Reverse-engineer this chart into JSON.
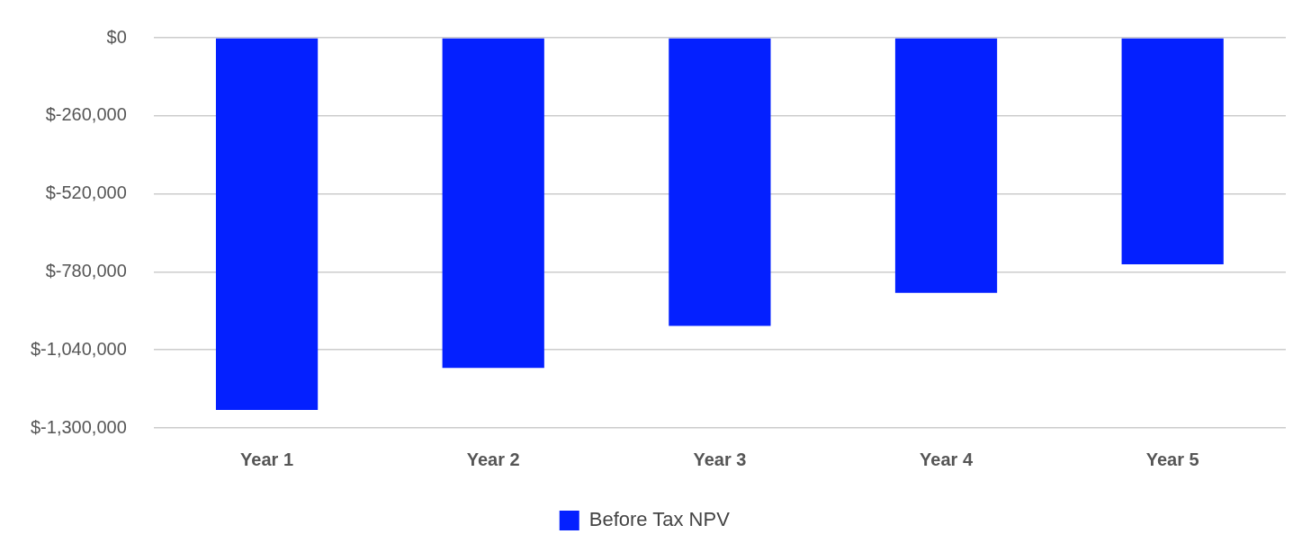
{
  "chart_data": {
    "type": "bar",
    "categories": [
      "Year 1",
      "Year 2",
      "Year 3",
      "Year 4",
      "Year 5"
    ],
    "series": [
      {
        "name": "Before Tax NPV",
        "color": "#0420ff",
        "values": [
          -1240000,
          -1100000,
          -960000,
          -850000,
          -755000
        ]
      }
    ],
    "ylim": [
      -1300000,
      0
    ],
    "yticks": [
      {
        "value": 0,
        "label": "$0"
      },
      {
        "value": -260000,
        "label": "$-260,000"
      },
      {
        "value": -520000,
        "label": "$-520,000"
      },
      {
        "value": -780000,
        "label": "$-780,000"
      },
      {
        "value": -1040000,
        "label": "$-1,040,000"
      },
      {
        "value": -1300000,
        "label": "$-1,300,000"
      }
    ],
    "grid": "y",
    "legend": "bottom"
  }
}
